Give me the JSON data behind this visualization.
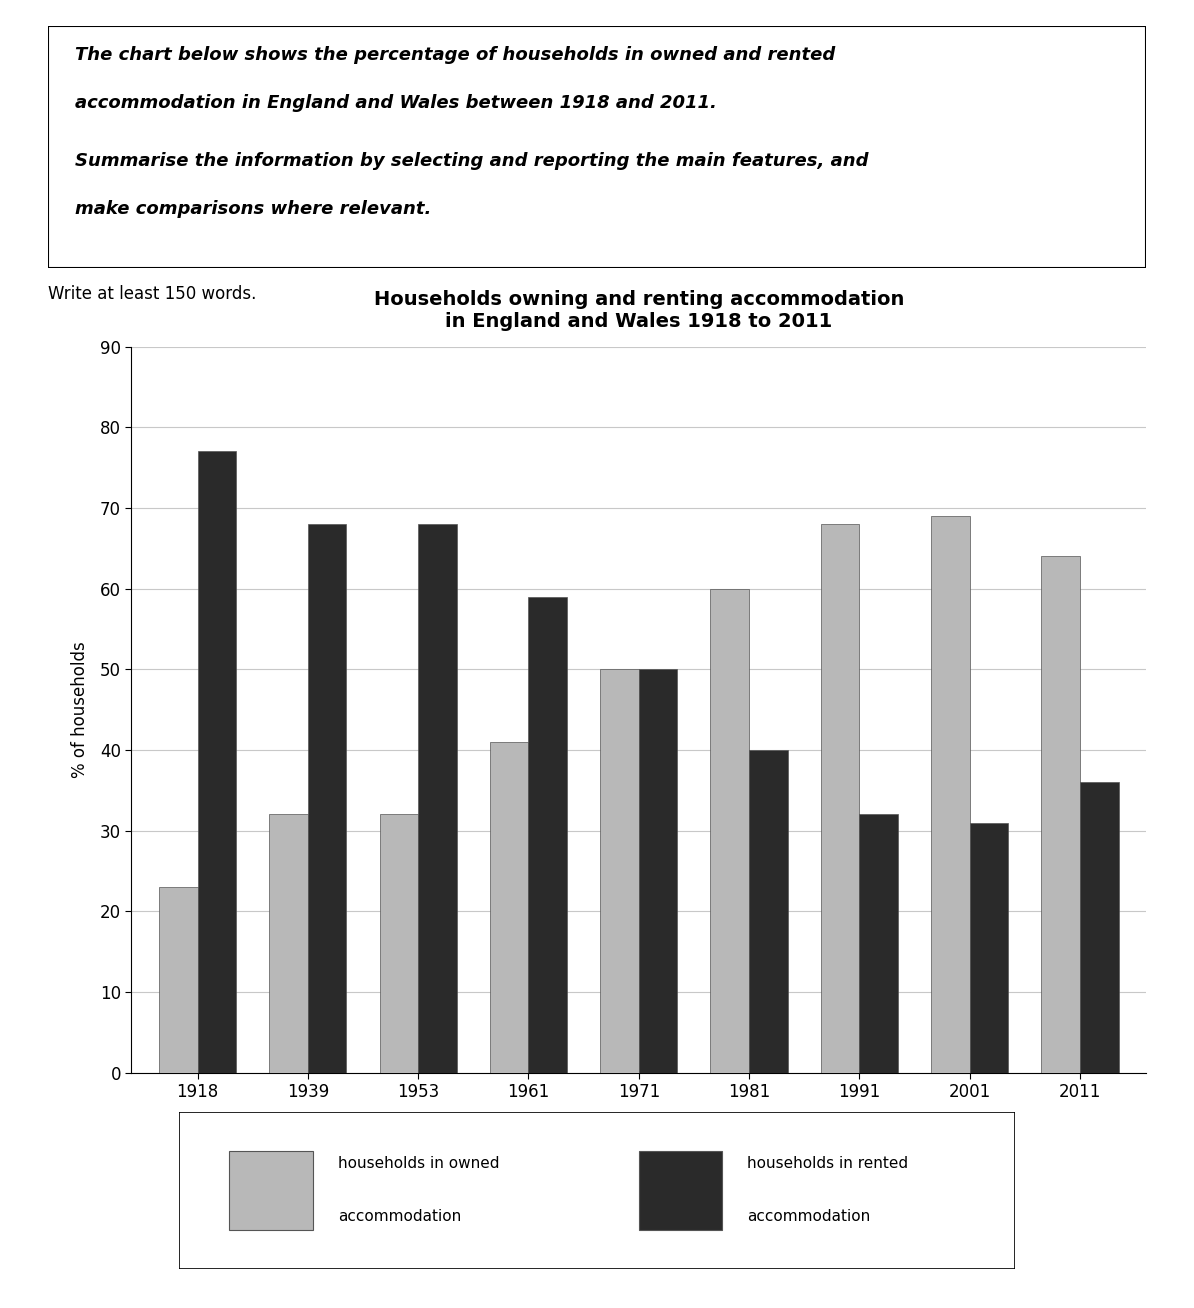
{
  "title": "Households owning and renting accommodation\nin England and Wales 1918 to 2011",
  "ylabel": "% of households",
  "years": [
    "1918",
    "1939",
    "1953",
    "1961",
    "1971",
    "1981",
    "1991",
    "2001",
    "2011"
  ],
  "owned": [
    23,
    32,
    32,
    41,
    50,
    60,
    68,
    69,
    64
  ],
  "rented": [
    77,
    68,
    68,
    59,
    50,
    40,
    32,
    31,
    36
  ],
  "owned_color": "#b8b8b8",
  "rented_color": "#2a2a2a",
  "ylim": [
    0,
    90
  ],
  "yticks": [
    0,
    10,
    20,
    30,
    40,
    50,
    60,
    70,
    80,
    90
  ],
  "bar_width": 0.35,
  "legend_owned": "households in owned\naccommodation",
  "legend_rented": "households in rented\naccommodation",
  "prompt_line1": "The chart below shows the percentage of households in owned and rented",
  "prompt_line2": "accommodation in England and Wales between 1918 and 2011.",
  "prompt_line3": "Summarise the information by selecting and reporting the main features, and",
  "prompt_line4": "make comparisons where relevant.",
  "write_note": "Write at least 150 words.",
  "background_color": "#ffffff",
  "grid_color": "#c8c8c8"
}
